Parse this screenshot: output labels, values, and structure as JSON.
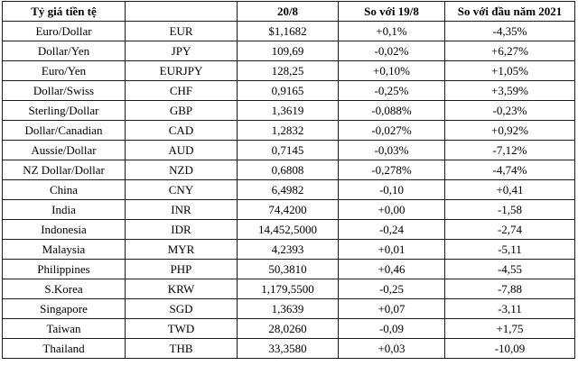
{
  "table": {
    "headers": [
      "Tỷ giá tiền tệ",
      "",
      "20/8",
      "So với 19/8",
      "So với đầu năm 2021"
    ],
    "rows": [
      [
        "Euro/Dollar",
        "EUR",
        "$1,1682",
        "+0,1%",
        "-4,35%"
      ],
      [
        "Dollar/Yen",
        "JPY",
        "109,69",
        "-0,02%",
        "+6,27%"
      ],
      [
        "Euro/Yen",
        "EURJPY",
        "128,25",
        "+0,10%",
        "+1,05%"
      ],
      [
        "Dollar/Swiss",
        "CHF",
        "0,9165",
        "-0,25%",
        "+3,59%"
      ],
      [
        "Sterling/Dollar",
        "GBP",
        "1,3619",
        "-0,088%",
        "-0,23%"
      ],
      [
        "Dollar/Canadian",
        "CAD",
        "1,2832",
        "-0,027%",
        "+0,92%"
      ],
      [
        "Aussie/Dollar",
        "AUD",
        "0,7145",
        "-0,03%",
        "-7,12%"
      ],
      [
        "NZ Dollar/Dollar",
        "NZD",
        "0,6808",
        "-0,278%",
        "-4,74%"
      ],
      [
        "China",
        "CNY",
        "6,4982",
        "-0,10",
        "+0,41"
      ],
      [
        "India",
        "INR",
        "74,4200",
        "+0,00",
        "-1,58"
      ],
      [
        "Indonesia",
        "IDR",
        "14,452,5000",
        "-0,24",
        "-2,74"
      ],
      [
        "Malaysia",
        "MYR",
        "4,2393",
        "+0,01",
        "-5,11"
      ],
      [
        "Philippines",
        "PHP",
        "50,3810",
        "+0,46",
        "-4,55"
      ],
      [
        "S.Korea",
        "KRW",
        "1,179,5500",
        "-0,25",
        "-7,88"
      ],
      [
        "Singapore",
        "SGD",
        "1,3639",
        "+0,07",
        "-3,11"
      ],
      [
        "Taiwan",
        "TWD",
        "28,0260",
        "-0,09",
        "+1,75"
      ],
      [
        "Thailand",
        "THB",
        "33,3580",
        "+0,03",
        "-10,09"
      ]
    ]
  }
}
